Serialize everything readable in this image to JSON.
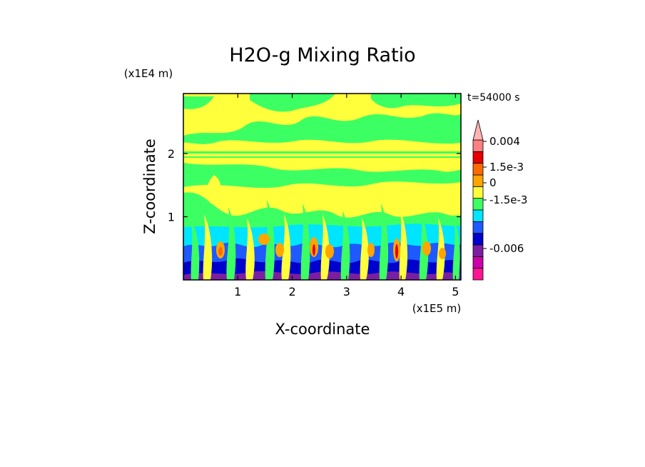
{
  "chart_data": {
    "type": "heatmap",
    "title": "H2O-g Mixing Ratio",
    "xlabel": "X-coordinate",
    "ylabel": "Z-coordinate",
    "x_unit": "(x1E5 m)",
    "y_unit": "(x1E4 m)",
    "time_label": "t=54000 s",
    "xlim": [
      0,
      5.1
    ],
    "ylim": [
      0,
      2.95
    ],
    "x_ticks": [
      "1",
      "2",
      "3",
      "4",
      "5"
    ],
    "x_tick_values": [
      1,
      2,
      3,
      4,
      5
    ],
    "y_ticks": [
      "1",
      "2"
    ],
    "y_tick_values": [
      1,
      2
    ],
    "colorbar": {
      "tick_labels": [
        "0.004",
        "1.5e-3",
        "0",
        "-1.5e-3",
        "-0.006"
      ],
      "colors": [
        "#ff1493",
        "#cc00aa",
        "#7b1fa2",
        "#0000cd",
        "#1e5aff",
        "#00e5ff",
        "#3cff64",
        "#ffff3c",
        "#ffa500",
        "#ff6a00",
        "#e60000",
        "#ff8080",
        "#ffb3b3"
      ]
    },
    "field_description_colors": {
      "upper_background": "#ffff3c",
      "upper_patches": "#3cff64",
      "lower_band": "#00e5ff",
      "bottom_band": "#0000cd"
    }
  }
}
